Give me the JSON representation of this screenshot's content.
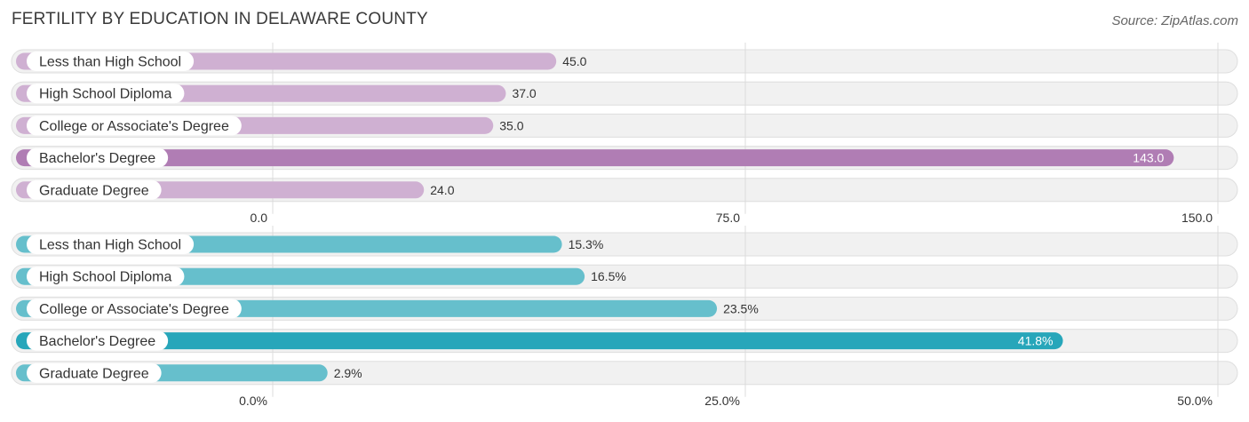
{
  "header": {
    "title": "FERTILITY BY EDUCATION IN DELAWARE COUNTY",
    "source": "Source: ZipAtlas.com"
  },
  "chart_data": [
    {
      "type": "bar",
      "orientation": "horizontal",
      "categories": [
        "Less than High School",
        "High School Diploma",
        "College or Associate's Degree",
        "Bachelor's Degree",
        "Graduate Degree"
      ],
      "values": [
        45.0,
        37.0,
        35.0,
        143.0,
        24.0
      ],
      "value_labels": [
        "45.0",
        "37.0",
        "35.0",
        "143.0",
        "24.0"
      ],
      "highlight_index": 3,
      "xlim": [
        0,
        150
      ],
      "ticks": [
        0,
        75,
        150
      ],
      "tick_labels": [
        "0.0",
        "75.0",
        "150.0"
      ],
      "colors": {
        "bar": "#cfb0d2",
        "highlight": "#b07db4"
      },
      "grid": true
    },
    {
      "type": "bar",
      "orientation": "horizontal",
      "categories": [
        "Less than High School",
        "High School Diploma",
        "College or Associate's Degree",
        "Bachelor's Degree",
        "Graduate Degree"
      ],
      "values": [
        15.3,
        16.5,
        23.5,
        41.8,
        2.9
      ],
      "value_labels": [
        "15.3%",
        "16.5%",
        "23.5%",
        "41.8%",
        "2.9%"
      ],
      "highlight_index": 3,
      "xlim": [
        0,
        50
      ],
      "ticks": [
        0,
        25,
        50
      ],
      "tick_labels": [
        "0.0%",
        "25.0%",
        "50.0%"
      ],
      "colors": {
        "bar": "#66bfcc",
        "highlight": "#27a6ba"
      },
      "grid": true
    }
  ]
}
